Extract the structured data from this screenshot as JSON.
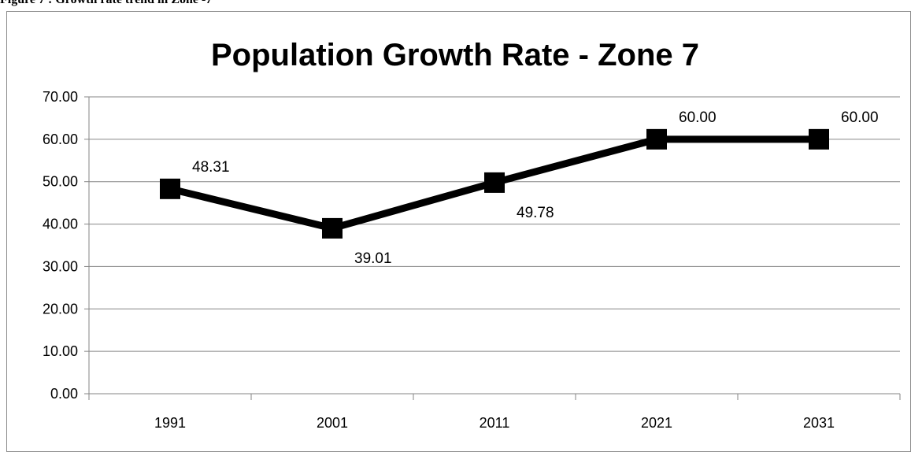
{
  "caption": "Figure 7 : Growth rate trend in Zone -7",
  "chart_data": {
    "type": "line",
    "title": "Population Growth Rate -  Zone 7",
    "xlabel": "",
    "ylabel": "",
    "categories": [
      "1991",
      "2001",
      "2011",
      "2021",
      "2031"
    ],
    "values": [
      48.31,
      39.01,
      49.78,
      60.0,
      60.0
    ],
    "data_labels": [
      "48.31",
      "39.01",
      "49.78",
      "60.00",
      "60.00"
    ],
    "ylim": [
      0,
      70
    ],
    "ytick_labels": [
      "0.00",
      "10.00",
      "20.00",
      "30.00",
      "40.00",
      "50.00",
      "60.00",
      "70.00"
    ],
    "grid": "horizontal",
    "legend": "none",
    "marker": "square",
    "line_color": "#000000",
    "grid_color": "#868686"
  }
}
